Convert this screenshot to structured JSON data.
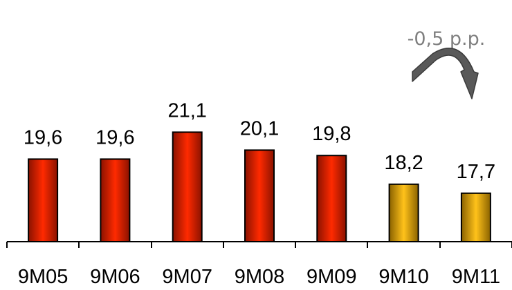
{
  "chart_data": {
    "type": "bar",
    "categories": [
      "9M05",
      "9M06",
      "9M07",
      "9M08",
      "9M09",
      "9M10",
      "9M11"
    ],
    "values": [
      19.6,
      19.6,
      21.1,
      20.1,
      19.8,
      18.2,
      17.7
    ],
    "value_labels": [
      "19,6",
      "19,6",
      "21,1",
      "20,1",
      "19,8",
      "18,2",
      "17,7"
    ],
    "bar_colors": [
      "#d81e00",
      "#d81e00",
      "#d81e00",
      "#d81e00",
      "#d81e00",
      "#f0b400",
      "#f0b400"
    ],
    "title": "",
    "xlabel": "",
    "ylabel": "",
    "ylim": [
      15,
      21.8
    ],
    "grid": false,
    "annotations": [
      {
        "text": "-0,5 p.p.",
        "color": "#7f7f7f",
        "icon": "curved-arrow-down-right-icon",
        "icon_color": "#595959"
      }
    ]
  }
}
